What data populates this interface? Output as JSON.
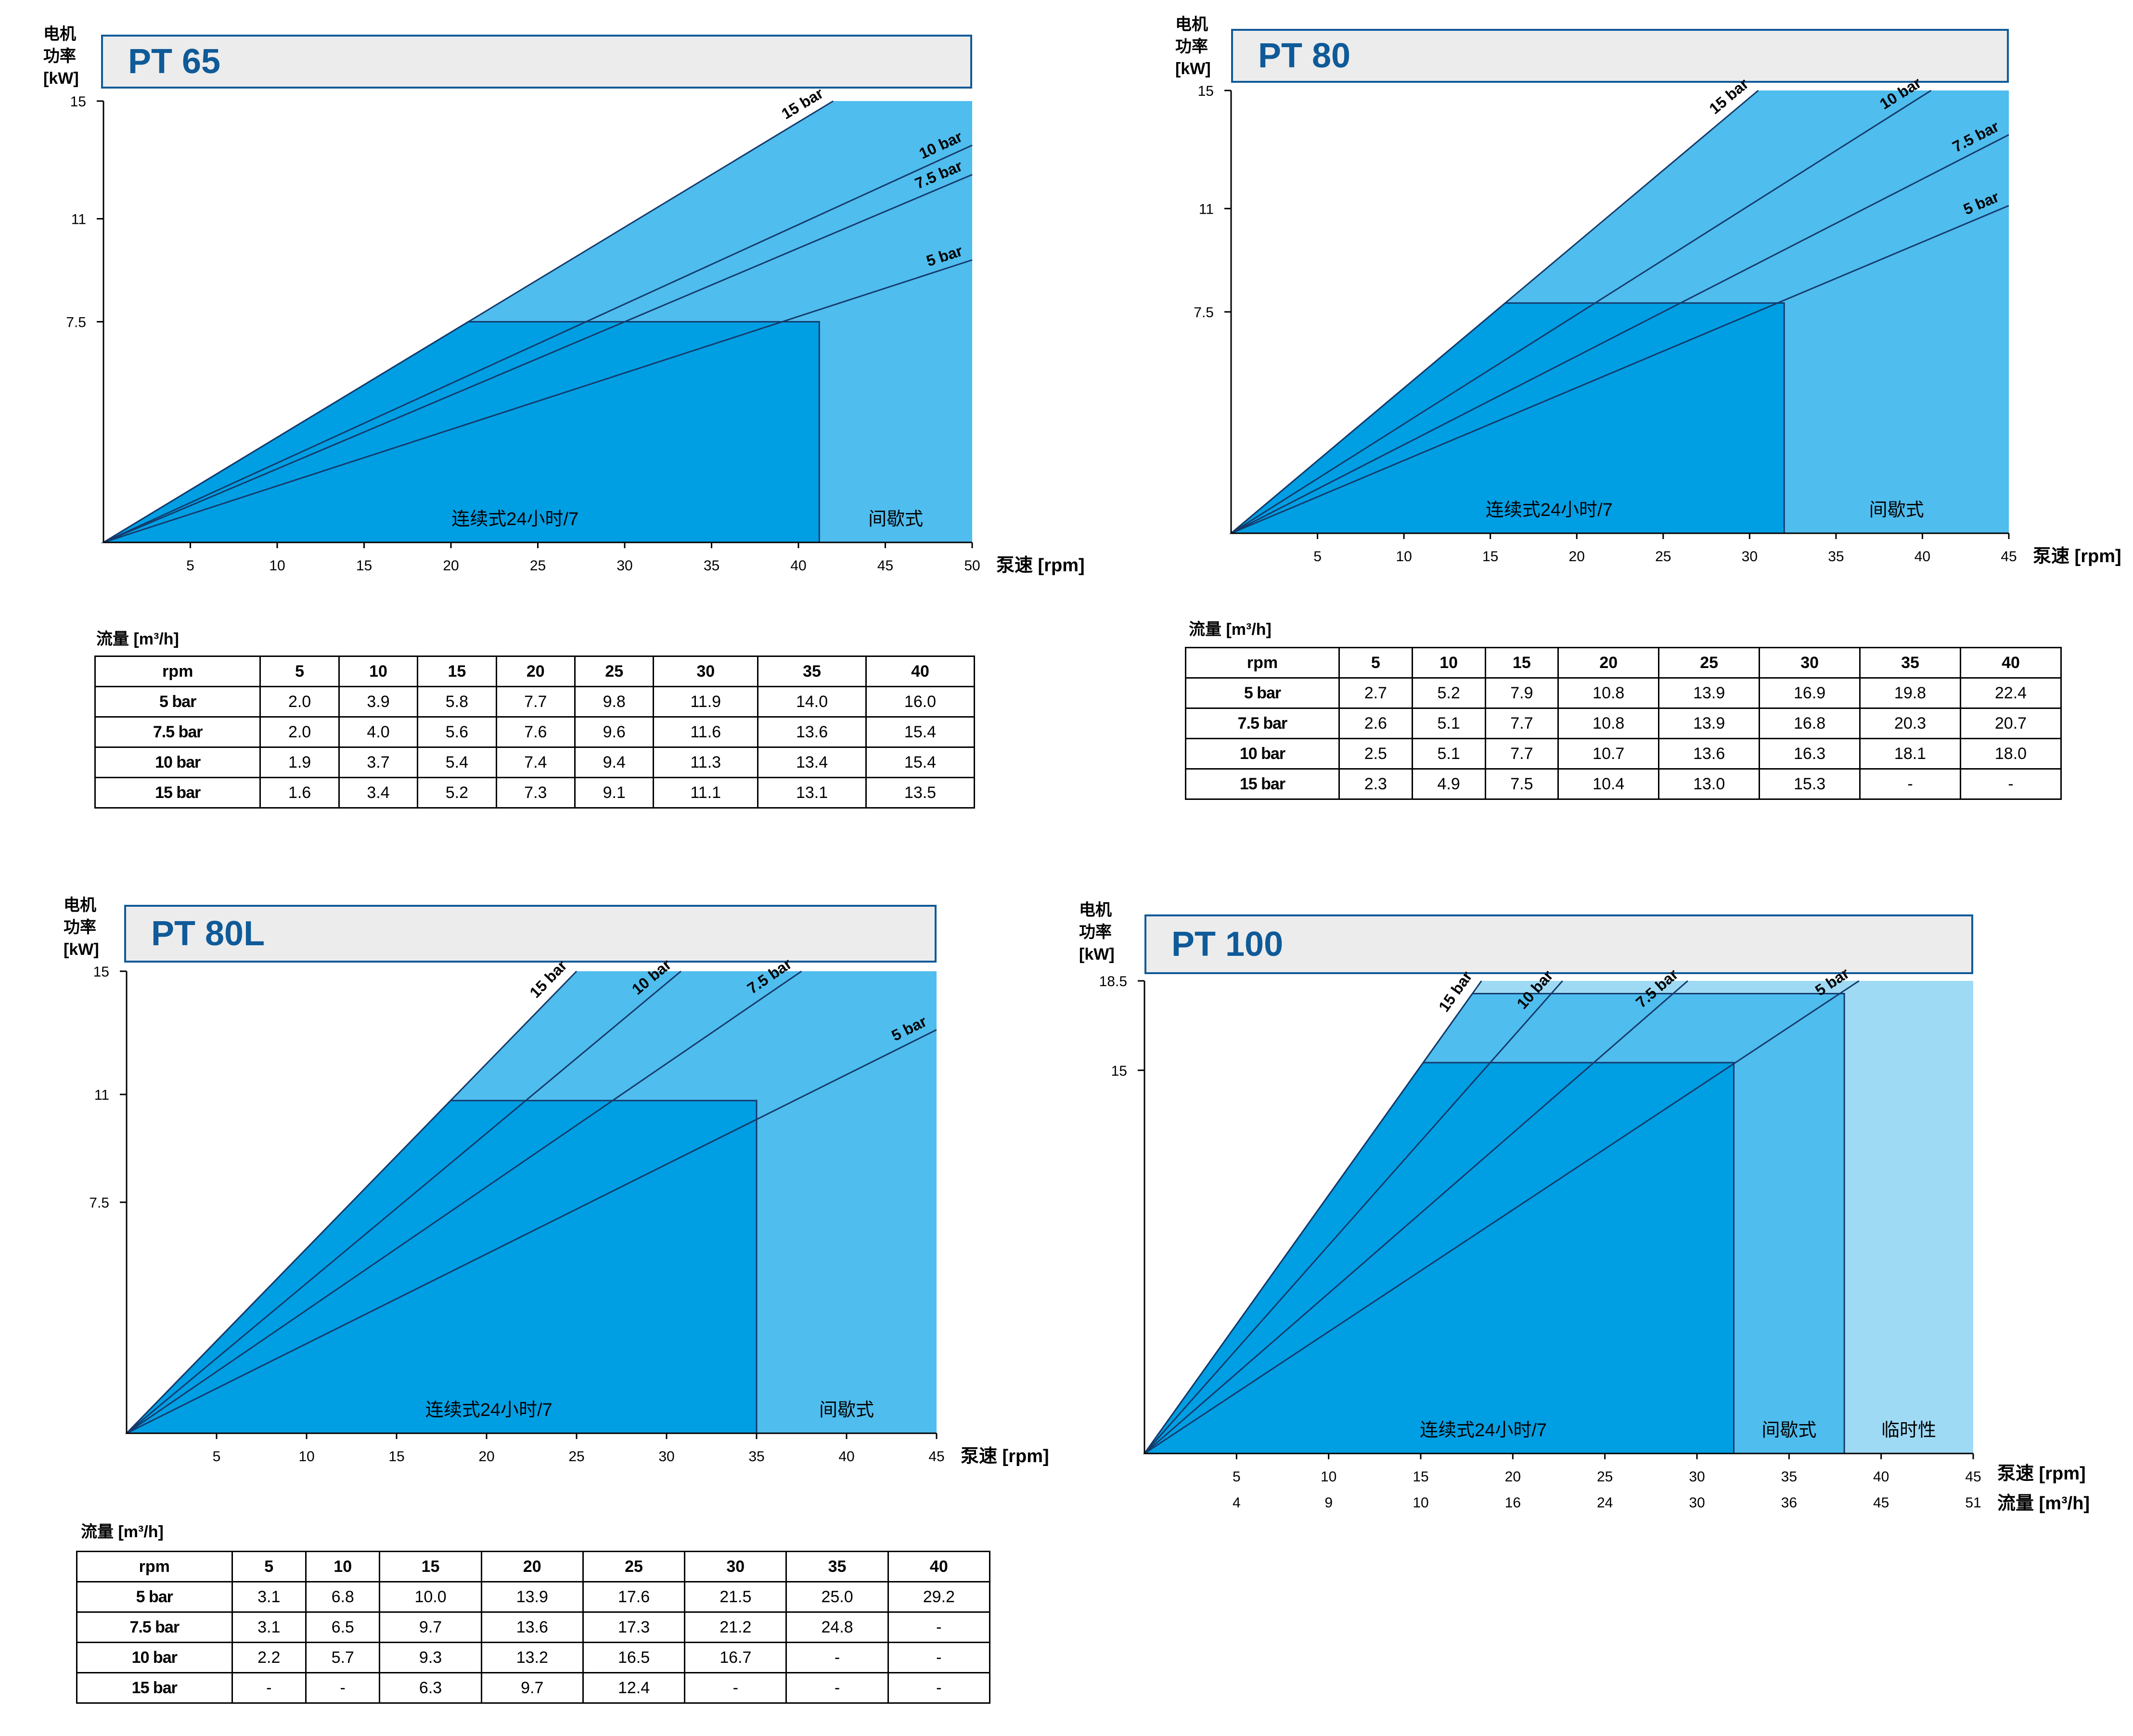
{
  "chart_data": [
    {
      "type": "area",
      "title": "PT 65",
      "ylabel": "电机\n功率\n[kW]",
      "xlabel": "泵速 [rpm]",
      "xlim": [
        0,
        50
      ],
      "ylim": [
        0,
        15
      ],
      "xticks": [
        5,
        10,
        15,
        20,
        25,
        30,
        35,
        40,
        45,
        50
      ],
      "yticks": [
        7.5,
        11,
        15
      ],
      "ytick_labels": [
        "7.5",
        "11",
        "15"
      ],
      "series": [
        {
          "name": "15 bar",
          "x": [
            0,
            42.0
          ],
          "y": [
            0,
            15
          ]
        },
        {
          "name": "10 bar",
          "x": [
            0,
            50
          ],
          "y": [
            0,
            13.5
          ]
        },
        {
          "name": "7.5 bar",
          "x": [
            0,
            50
          ],
          "y": [
            0,
            12.5
          ]
        },
        {
          "name": "5 bar",
          "x": [
            0,
            50
          ],
          "y": [
            0,
            9.6
          ]
        }
      ],
      "regions": [
        {
          "label": "连续式24小时/7",
          "x_range": [
            0,
            41.2
          ],
          "y_max": 7.5
        },
        {
          "label": "间歇式",
          "x_range": [
            41.2,
            50
          ],
          "y_max": 15
        }
      ],
      "flow_table": {
        "caption": "流量 [m³/h]",
        "columns": [
          "rpm",
          "5",
          "10",
          "15",
          "20",
          "25",
          "30",
          "35",
          "40"
        ],
        "rows": [
          [
            "5 bar",
            "2.0",
            "3.9",
            "5.8",
            "7.7",
            "9.8",
            "11.9",
            "14.0",
            "16.0"
          ],
          [
            "7.5 bar",
            "2.0",
            "4.0",
            "5.6",
            "7.6",
            "9.6",
            "11.6",
            "13.6",
            "15.4"
          ],
          [
            "10 bar",
            "1.9",
            "3.7",
            "5.4",
            "7.4",
            "9.4",
            "11.3",
            "13.4",
            "15.4"
          ],
          [
            "15 bar",
            "1.6",
            "3.4",
            "5.2",
            "7.3",
            "9.1",
            "11.1",
            "13.1",
            "13.5"
          ]
        ]
      }
    },
    {
      "type": "area",
      "title": "PT 80",
      "ylabel": "电机\n功率\n[kW]",
      "xlabel": "泵速 [rpm]",
      "xlim": [
        0,
        45
      ],
      "ylim": [
        0,
        15
      ],
      "xticks": [
        5,
        10,
        15,
        20,
        25,
        30,
        35,
        40,
        45
      ],
      "yticks": [
        7.5,
        11,
        15
      ],
      "ytick_labels": [
        "7.5",
        "11",
        "15"
      ],
      "series": [
        {
          "name": "15 bar",
          "x": [
            0,
            30.5
          ],
          "y": [
            0,
            15
          ]
        },
        {
          "name": "10 bar",
          "x": [
            0,
            40.5
          ],
          "y": [
            0,
            15
          ]
        },
        {
          "name": "7.5 bar",
          "x": [
            0,
            45
          ],
          "y": [
            0,
            13.5
          ]
        },
        {
          "name": "5 bar",
          "x": [
            0,
            45
          ],
          "y": [
            0,
            11.1
          ]
        }
      ],
      "regions": [
        {
          "label": "连续式24小时/7",
          "x_range": [
            0,
            32
          ],
          "y_max": 7.8
        },
        {
          "label": "间歇式",
          "x_range": [
            32,
            45
          ],
          "y_max": 15
        }
      ],
      "flow_table": {
        "caption": "流量 [m³/h]",
        "columns": [
          "rpm",
          "5",
          "10",
          "15",
          "20",
          "25",
          "30",
          "35",
          "40"
        ],
        "rows": [
          [
            "5 bar",
            "2.7",
            "5.2",
            "7.9",
            "10.8",
            "13.9",
            "16.9",
            "19.8",
            "22.4"
          ],
          [
            "7.5 bar",
            "2.6",
            "5.1",
            "7.7",
            "10.8",
            "13.9",
            "16.8",
            "20.3",
            "20.7"
          ],
          [
            "10 bar",
            "2.5",
            "5.1",
            "7.7",
            "10.7",
            "13.6",
            "16.3",
            "18.1",
            "18.0"
          ],
          [
            "15 bar",
            "2.3",
            "4.9",
            "7.5",
            "10.4",
            "13.0",
            "15.3",
            "-",
            "-"
          ]
        ]
      }
    },
    {
      "type": "area",
      "title": "PT 80L",
      "ylabel": "电机\n功率\n[kW]",
      "xlabel": "泵速 [rpm]",
      "xlim": [
        0,
        45
      ],
      "ylim": [
        0,
        15
      ],
      "xticks": [
        5,
        10,
        15,
        20,
        25,
        30,
        35,
        40,
        45
      ],
      "yticks": [
        7.5,
        11,
        15
      ],
      "ytick_labels": [
        "7.5",
        "11",
        "15"
      ],
      "series": [
        {
          "name": "15 bar",
          "x": [
            0,
            25.0
          ],
          "y": [
            0,
            15
          ]
        },
        {
          "name": "10 bar",
          "x": [
            0,
            30.8
          ],
          "y": [
            0,
            15
          ]
        },
        {
          "name": "7.5 bar",
          "x": [
            0,
            37.5
          ],
          "y": [
            0,
            15
          ]
        },
        {
          "name": "5 bar",
          "x": [
            0,
            45
          ],
          "y": [
            0,
            13.1
          ]
        }
      ],
      "regions": [
        {
          "label": "连续式24小时/7",
          "x_range": [
            0,
            35
          ],
          "y_max": 10.8
        },
        {
          "label": "间歇式",
          "x_range": [
            35,
            45
          ],
          "y_max": 15
        }
      ],
      "flow_table": {
        "caption": "流量 [m³/h]",
        "columns": [
          "rpm",
          "5",
          "10",
          "15",
          "20",
          "25",
          "30",
          "35",
          "40"
        ],
        "rows": [
          [
            "5 bar",
            "3.1",
            "6.8",
            "10.0",
            "13.9",
            "17.6",
            "21.5",
            "25.0",
            "29.2"
          ],
          [
            "7.5 bar",
            "3.1",
            "6.5",
            "9.7",
            "13.6",
            "17.3",
            "21.2",
            "24.8",
            "-"
          ],
          [
            "10 bar",
            "2.2",
            "5.7",
            "9.3",
            "13.2",
            "16.5",
            "16.7",
            "-",
            "-"
          ],
          [
            "15 bar",
            "-",
            "-",
            "6.3",
            "9.7",
            "12.4",
            "-",
            "-",
            "-"
          ]
        ]
      }
    },
    {
      "type": "area",
      "title": "PT 100",
      "ylabel": "电机\n功率\n[kW]",
      "xlabel": "泵速 [rpm]",
      "x2label": "流量 [m³/h]",
      "xlim": [
        0,
        45
      ],
      "ylim": [
        0,
        18.5
      ],
      "xticks": [
        5,
        10,
        15,
        20,
        25,
        30,
        35,
        40,
        45
      ],
      "x2ticks": [
        4,
        9,
        10,
        16,
        24,
        30,
        36,
        45,
        51
      ],
      "yticks": [
        15,
        18.5
      ],
      "ytick_labels": [
        "15",
        "18.5"
      ],
      "series": [
        {
          "name": "15 bar",
          "x": [
            0,
            18.3
          ],
          "y": [
            0,
            18.5
          ]
        },
        {
          "name": "10 bar",
          "x": [
            0,
            22.7
          ],
          "y": [
            0,
            18.5
          ]
        },
        {
          "name": "7.5 bar",
          "x": [
            0,
            29.5
          ],
          "y": [
            0,
            18.5
          ]
        },
        {
          "name": "5 bar",
          "x": [
            0,
            38.8
          ],
          "y": [
            0,
            18.5
          ]
        }
      ],
      "regions": [
        {
          "label": "连续式24小时/7",
          "x_range": [
            0,
            32
          ],
          "y_max": 15.3
        },
        {
          "label": "间歇式",
          "x_range": [
            32,
            38
          ],
          "y_max": 18.0
        },
        {
          "label": "临时性",
          "x_range": [
            38,
            45
          ],
          "y_max": 18.5
        }
      ]
    }
  ]
}
